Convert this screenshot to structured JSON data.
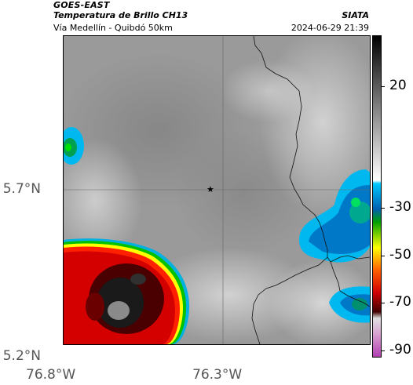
{
  "header": {
    "satellite": "GOES-EAST",
    "product": "Temperatura de Brillo CH13",
    "source": "SIATA",
    "area": "Vía Medellín - Quibdó 50km",
    "timestamp": "2024-06-29 21:39"
  },
  "map": {
    "lat_ticks": [
      "5.7°N",
      "5.2°N"
    ],
    "lon_ticks": [
      "76.8°W",
      "76.3°W"
    ],
    "marker": "star",
    "features": [
      "political-boundary-lines",
      "graticule-lines"
    ]
  },
  "colorbar": {
    "labels": [
      "20",
      "-30",
      "-50",
      "-70",
      "-90"
    ],
    "unit_hint": "brightness temperature",
    "palette": [
      "#000000",
      "#ffffff",
      "#00c8ff",
      "#0070c0",
      "#00a000",
      "#ffff00",
      "#ff0000",
      "#600000",
      "#c060c0"
    ]
  }
}
